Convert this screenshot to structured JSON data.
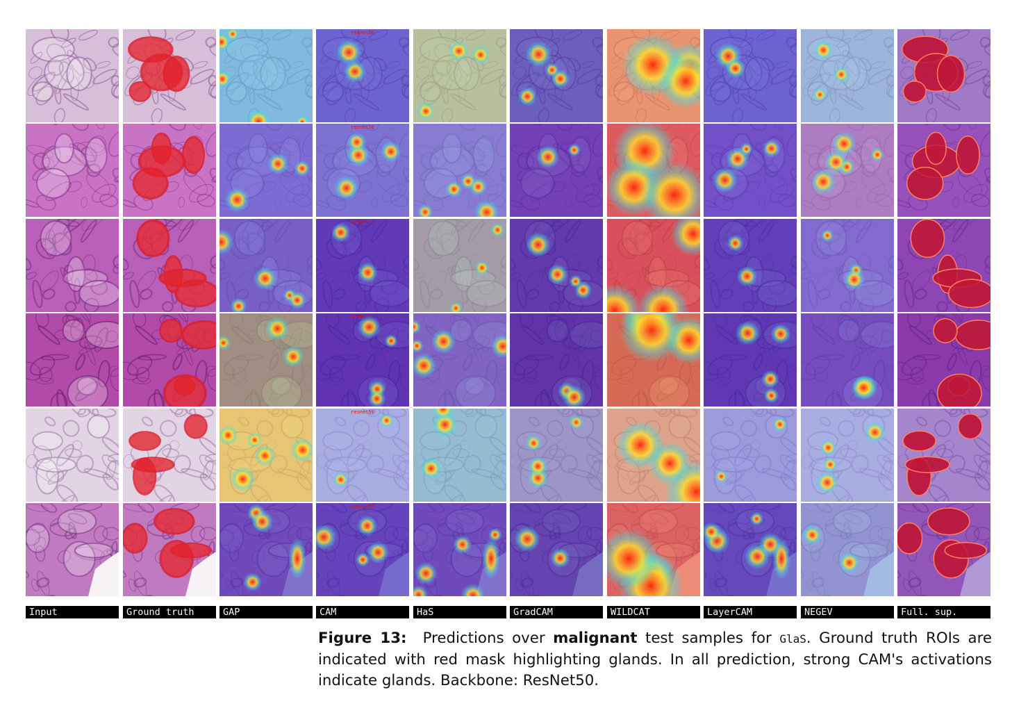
{
  "figure": {
    "columns": [
      "Input",
      "Ground truth",
      "GAP",
      "CAM",
      "HaS",
      "GradCAM",
      "WILDCAT",
      "LayerCAM",
      "NEGEV",
      "Full. sup."
    ],
    "row_count": 6,
    "watermark_text": "resnet50",
    "colors": {
      "tissue_light": "#d8b8d8",
      "tissue_pink": "#c060c0",
      "mask_red": "#e0202a",
      "cam_blue": "#4030d0",
      "cam_warm": "#ff3020",
      "label_bg": "#000000",
      "label_fg": "#ffffff"
    }
  },
  "caption": {
    "figure_label": "Figure 13:",
    "text_1": "Predictions over",
    "emphasis": "malignant",
    "text_2": "test samples for",
    "dataset": "GlaS",
    "text_3": ". Ground truth ROIs are indicated with red mask highlighting glands. In all prediction, strong CAM's activations indicate glands. Backbone: ResNet50."
  }
}
